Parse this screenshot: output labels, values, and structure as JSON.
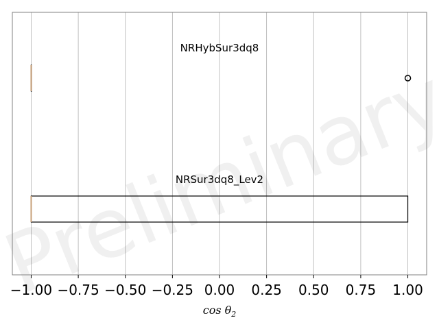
{
  "chart_data": {
    "type": "boxplot",
    "orientation": "horizontal",
    "xlabel": "cos θ₂",
    "xlim": [
      -1.1,
      1.1
    ],
    "xticks": [
      -1.0,
      -0.75,
      -0.5,
      -0.25,
      0.0,
      0.25,
      0.5,
      0.75,
      1.0
    ],
    "xtick_labels": [
      "−1.00",
      "−0.75",
      "−0.50",
      "−0.25",
      "0.00",
      "0.25",
      "0.50",
      "0.75",
      "1.00"
    ],
    "grid": "vertical",
    "watermark": "Preliminary",
    "series": [
      {
        "name": "NRHybSur3dq8",
        "whisker_low": -1.0,
        "q1": -1.0,
        "median": -1.0,
        "q3": -1.0,
        "whisker_high": -1.0,
        "outliers": [
          1.0
        ]
      },
      {
        "name": "NRSur3dq8_Lev2",
        "whisker_low": -1.0,
        "q1": -1.0,
        "median": -1.0,
        "q3": 1.0,
        "whisker_high": 1.0,
        "outliers": []
      }
    ],
    "colors": {
      "box_edge": "#000000",
      "median": "#c8a07a",
      "grid": "#b0b0b0",
      "outlier_edge": "#000000"
    }
  }
}
